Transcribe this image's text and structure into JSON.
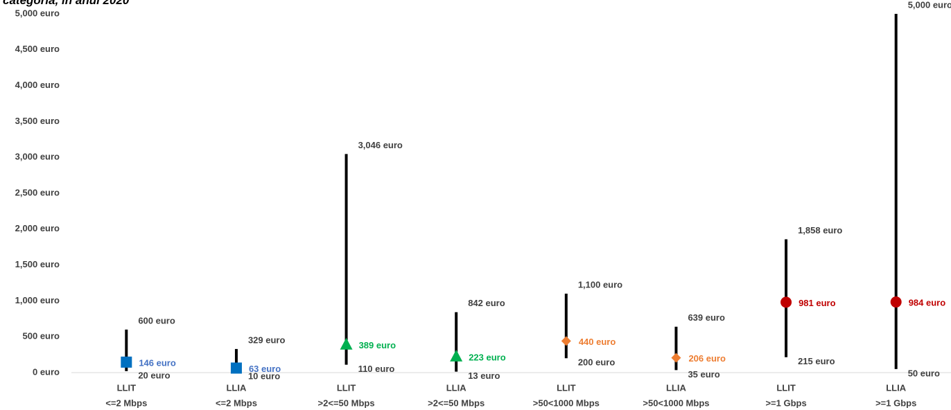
{
  "chart_data": {
    "type": "range",
    "title": "categoria, in anul 2020",
    "xlabel": "",
    "ylabel": "",
    "ylim": [
      0,
      5000
    ],
    "yticks": [
      0,
      500,
      1000,
      1500,
      2000,
      2500,
      3000,
      3500,
      4000,
      4500,
      5000
    ],
    "y_unit": "euro",
    "grid": false,
    "legend": "none",
    "categories": [
      {
        "line1": "LLIT",
        "line2": "<=2 Mbps"
      },
      {
        "line1": "LLIA",
        "line2": "<=2 Mbps"
      },
      {
        "line1": "LLIT",
        "line2": ">2<=50 Mbps"
      },
      {
        "line1": "LLIA",
        "line2": ">2<=50 Mbps"
      },
      {
        "line1": "LLIT",
        "line2": ">50<1000 Mbps"
      },
      {
        "line1": "LLIA",
        "line2": ">50<1000 Mbps"
      },
      {
        "line1": "LLIT",
        "line2": ">=1 Gbps"
      },
      {
        "line1": "LLIA",
        "line2": ">=1 Gbps"
      }
    ],
    "series": [
      {
        "name": "max",
        "values": [
          600,
          329,
          3046,
          842,
          1100,
          639,
          1858,
          5000
        ],
        "labels": [
          "600 euro",
          "329 euro",
          "3,046 euro",
          "842 euro",
          "1,100 euro",
          "639 euro",
          "1,858 euro",
          "5,000 euro"
        ]
      },
      {
        "name": "min",
        "values": [
          20,
          10,
          110,
          13,
          200,
          35,
          215,
          50
        ],
        "labels": [
          "20 euro",
          "10 euro",
          "110 euro",
          "13 euro",
          "200 euro",
          "35 euro",
          "215 euro",
          "50 euro"
        ]
      },
      {
        "name": "avg",
        "values": [
          146,
          63,
          389,
          223,
          440,
          206,
          981,
          984
        ],
        "labels": [
          "146 euro",
          "63 euro",
          "389 euro",
          "223 euro",
          "440 euro",
          "206 euro",
          "981 euro",
          "984 euro"
        ]
      }
    ],
    "markers": [
      "square",
      "square",
      "triangle",
      "triangle",
      "diamond",
      "diamond",
      "circle",
      "circle"
    ],
    "marker_colors": [
      "#0070C0",
      "#0070C0",
      "#00B050",
      "#00B050",
      "#ED7D31",
      "#ED7D31",
      "#C00000",
      "#C00000"
    ],
    "avg_label_colors": [
      "#4472C4",
      "#4472C4",
      "#00B050",
      "#00B050",
      "#ED7D31",
      "#ED7D31",
      "#C00000",
      "#C00000"
    ],
    "line_color": "#000000",
    "text_color": "#404040"
  }
}
